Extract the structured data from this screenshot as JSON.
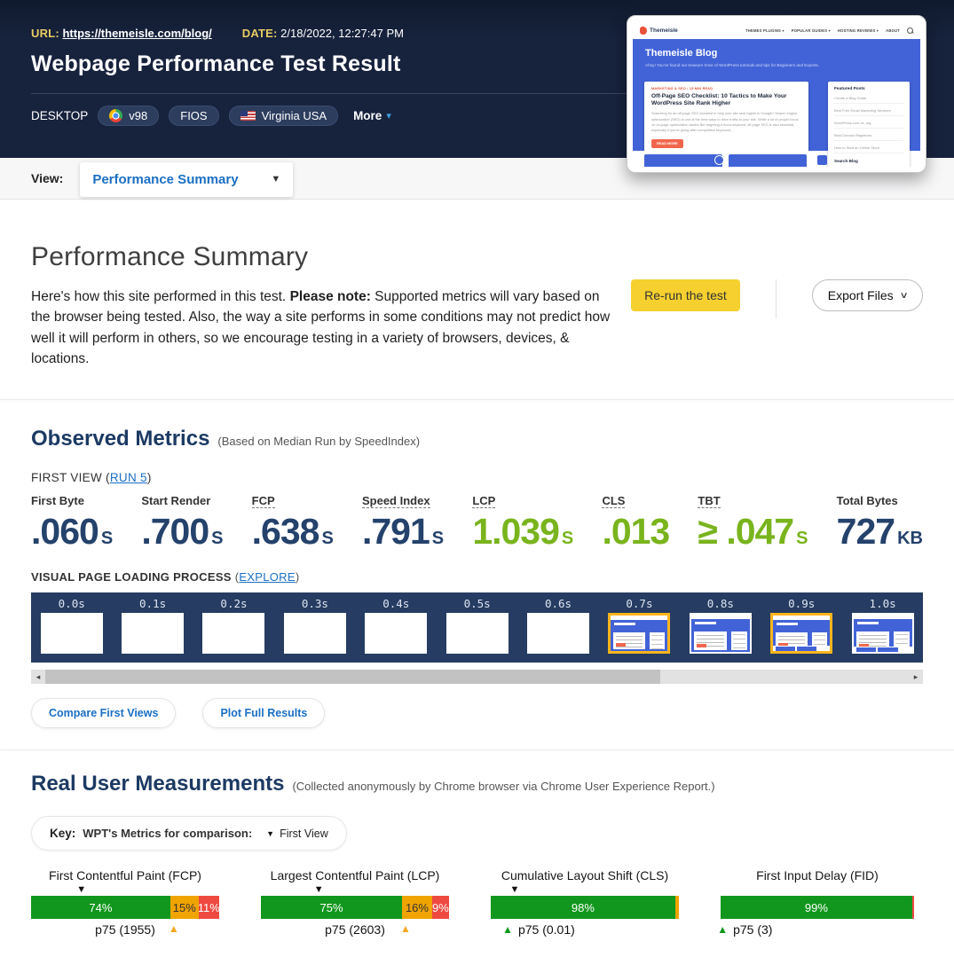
{
  "header": {
    "url_label": "URL:",
    "url": "https://themeisle.com/blog/",
    "date_label": "DATE:",
    "date": "2/18/2022, 12:27:47 PM",
    "title": "Webpage Performance Test Result",
    "device": "DESKTOP",
    "browser_version": "v98",
    "connection": "FIOS",
    "location": "Virginia USA",
    "more_label": "More"
  },
  "thumbnail": {
    "site_name": "Themeisle",
    "nav_items": [
      "THEMES PLUGINS ▾",
      "POPULAR GUIDES ▾",
      "HOSTING REVIEWS ▾",
      "ABOUT"
    ],
    "hero_title": "Themeisle Blog",
    "hero_subtitle": "Ahoy! You've found our treasure trove of WordPress tutorials and tips for Beginners and Experts.",
    "article_category": "MARKETING & SEO  •  15 MIN READ",
    "article_title": "Off-Page SEO Checklist: 10 Tactics to Make Your WordPress Site Rank Higher",
    "article_excerpt": "Searching for an off-page SEO checklist to help your site rank higher in Google? Search engine optimization (SEO) is one of the best ways to drive traffic to your site. While a lot of people focus on on-page optimization tactics like targeting a focus keyword, off-page SEO is also essential, especially if you're going after competitive keywords.",
    "read_more": "READ MORE",
    "sidebar_title": "Featured Posts",
    "sidebar_items": [
      "Create a Blog Guide",
      "Best Free Email Marketing Services",
      "WordPress.com vs .org",
      "Best Domain Registrars",
      "How to Start an Online Store"
    ],
    "sidebar_footer": "Search Blog"
  },
  "view_bar": {
    "label": "View:",
    "selected": "Performance Summary"
  },
  "summary": {
    "heading": "Performance Summary",
    "intro": "Here's how this site performed in this test. ",
    "note_label": "Please note:",
    "note_text": " Supported metrics will vary based on the browser being tested. Also, the way a site performs in some conditions may not predict how well it will perform in others, so we encourage testing in a variety of browsers, devices, & locations.",
    "rerun_label": "Re-run the test",
    "export_label": "Export Files"
  },
  "observed": {
    "heading": "Observed Metrics",
    "subheading": "(Based on Median Run by SpeedIndex)",
    "first_view_prefix": "FIRST VIEW (",
    "run_link": "RUN 5",
    "first_view_suffix": ")",
    "metrics": [
      {
        "label": "First Byte",
        "value": ".060",
        "unit": "S",
        "color": "navy",
        "linked": false
      },
      {
        "label": "Start Render",
        "value": ".700",
        "unit": "S",
        "color": "navy",
        "linked": false
      },
      {
        "label": "FCP",
        "value": ".638",
        "unit": "S",
        "color": "navy",
        "linked": true
      },
      {
        "label": "Speed Index",
        "value": ".791",
        "unit": "S",
        "color": "navy",
        "linked": true
      },
      {
        "label": "LCP",
        "value": "1.039",
        "unit": "S",
        "color": "green",
        "linked": true
      },
      {
        "label": "CLS",
        "value": ".013",
        "unit": "",
        "color": "green",
        "linked": true
      },
      {
        "label": "TBT",
        "value": "≥ .047",
        "unit": "S",
        "color": "green",
        "linked": true
      },
      {
        "label": "Total Bytes",
        "value": "727",
        "unit": "KB",
        "color": "navy",
        "linked": false
      }
    ],
    "filmstrip_label": "VISUAL PAGE LOADING PROCESS",
    "explore_link": "EXPLORE",
    "frames": [
      {
        "time": "0.0s",
        "rendered": false,
        "highlight": false,
        "footer": false
      },
      {
        "time": "0.1s",
        "rendered": false,
        "highlight": false,
        "footer": false
      },
      {
        "time": "0.2s",
        "rendered": false,
        "highlight": false,
        "footer": false
      },
      {
        "time": "0.3s",
        "rendered": false,
        "highlight": false,
        "footer": false
      },
      {
        "time": "0.4s",
        "rendered": false,
        "highlight": false,
        "footer": false
      },
      {
        "time": "0.5s",
        "rendered": false,
        "highlight": false,
        "footer": false
      },
      {
        "time": "0.6s",
        "rendered": false,
        "highlight": false,
        "footer": false
      },
      {
        "time": "0.7s",
        "rendered": true,
        "highlight": true,
        "footer": false
      },
      {
        "time": "0.8s",
        "rendered": true,
        "highlight": false,
        "footer": false
      },
      {
        "time": "0.9s",
        "rendered": true,
        "highlight": true,
        "footer": true
      },
      {
        "time": "1.0s",
        "rendered": true,
        "highlight": false,
        "footer": true
      }
    ],
    "compare_btn": "Compare First Views",
    "plot_btn": "Plot Full Results"
  },
  "rum": {
    "heading": "Real User Measurements",
    "subheading": "(Collected anonymously by Chrome browser via Chrome User Experience Report.)",
    "key_label": "Key:",
    "key_text": "WPT's Metrics for comparison:",
    "key_marker": "▼",
    "key_value": "First View",
    "charts": [
      {
        "title": "First Contentful Paint (FCP)",
        "wpt_marker_pct": 27,
        "segments": [
          {
            "pct": 74,
            "color": "#11971d",
            "label": "74%",
            "label_color": "#ffffff"
          },
          {
            "pct": 15,
            "color": "#f0a400",
            "label": "15%",
            "label_color": "#333333"
          },
          {
            "pct": 11,
            "color": "#ee4a41",
            "label": "11%",
            "label_color": "#ffffff"
          }
        ],
        "p75_label": "p75 (1955)",
        "p75_pct": 74,
        "p75_color": "#f5a623",
        "p75_layout": "center"
      },
      {
        "title": "Largest Contentful Paint (LCP)",
        "wpt_marker_pct": 31,
        "segments": [
          {
            "pct": 75,
            "color": "#11971d",
            "label": "75%",
            "label_color": "#ffffff"
          },
          {
            "pct": 16,
            "color": "#f0a400",
            "label": "16%",
            "label_color": "#333333"
          },
          {
            "pct": 9,
            "color": "#ee4a41",
            "label": "9%",
            "label_color": "#ffffff"
          }
        ],
        "p75_label": "p75 (2603)",
        "p75_pct": 75,
        "p75_color": "#f5a623",
        "p75_layout": "center"
      },
      {
        "title": "Cumulative Layout Shift (CLS)",
        "wpt_marker_pct": 13,
        "segments": [
          {
            "pct": 98,
            "color": "#11971d",
            "label": "98%",
            "label_color": "#ffffff"
          },
          {
            "pct": 2,
            "color": "#f0a400",
            "label": "",
            "label_color": "#333333"
          }
        ],
        "p75_label": "p75 (0.01)",
        "p75_pct": 9,
        "p75_color": "#11971d",
        "p75_layout": "left"
      },
      {
        "title": "First Input Delay (FID)",
        "wpt_marker_pct": null,
        "segments": [
          {
            "pct": 99,
            "color": "#11971d",
            "label": "99%",
            "label_color": "#ffffff"
          },
          {
            "pct": 1,
            "color": "#ee4a41",
            "label": "",
            "label_color": "#ffffff"
          }
        ],
        "p75_label": "p75 (3)",
        "p75_pct": 1,
        "p75_color": "#11971d",
        "p75_layout": "left"
      }
    ]
  },
  "colors": {
    "header_bg": "#17223d",
    "accent_blue": "#1a6fc4",
    "label_gold": "#e8cc63",
    "rerun_yellow": "#f5d02f",
    "metric_navy": "#24426b",
    "metric_green": "#79b41d",
    "good_green": "#11971d",
    "average_amber": "#f0a400",
    "poor_red": "#ee4a41",
    "p75_orange": "#f5a623",
    "filmstrip_bg": "#263c62",
    "frame_highlight": "#fcb51e",
    "hero_blue": "#4263d7"
  }
}
